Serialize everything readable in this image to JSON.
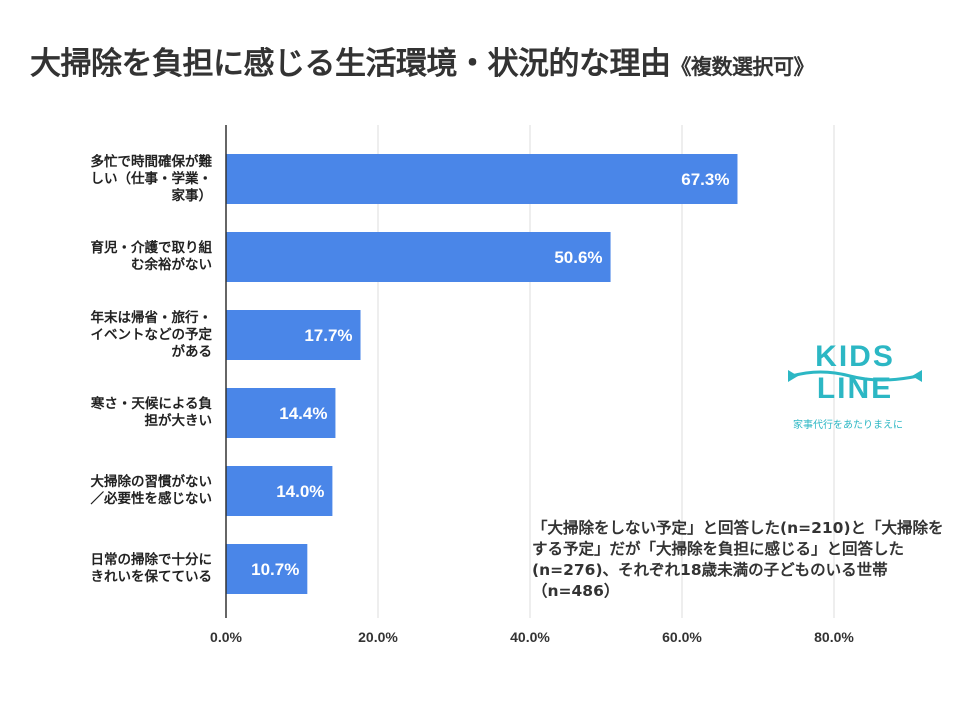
{
  "title": {
    "main": "大掃除を負担に感じる生活環境・状況的な理由",
    "sub": "《複数選択可》"
  },
  "chart_data": {
    "type": "bar",
    "orientation": "horizontal",
    "categories": [
      "多忙で時間確保が難しい（仕事・学業・家事）",
      "育児・介護で取り組む余裕がない",
      "年末は帰省・旅行・イベントなどの予定がある",
      "寒さ・天候による負担が大きい",
      "大掃除の習慣がない／必要性を感じない",
      "日常の掃除で十分にきれいを保てている"
    ],
    "category_lines": [
      [
        "多忙で時間確保が難",
        "しい（仕事・学業・",
        "家事）"
      ],
      [
        "育児・介護で取り組",
        "む余裕がない"
      ],
      [
        "年末は帰省・旅行・",
        "イベントなどの予定",
        "がある"
      ],
      [
        "寒さ・天候による負",
        "担が大きい"
      ],
      [
        "大掃除の習慣がない",
        "／必要性を感じない"
      ],
      [
        "日常の掃除で十分に",
        "きれいを保てている"
      ]
    ],
    "values": [
      67.3,
      50.6,
      17.7,
      14.4,
      14.0,
      10.7
    ],
    "value_labels": [
      "67.3%",
      "50.6%",
      "17.7%",
      "14.4%",
      "14.0%",
      "10.7%"
    ],
    "xlim": [
      0,
      80
    ],
    "xticks": [
      0,
      20,
      40,
      60,
      80
    ],
    "xtick_labels": [
      "0.0%",
      "20.0%",
      "40.0%",
      "60.0%",
      "80.0%"
    ],
    "grid": true,
    "bar_color": "#4a86e8",
    "label_color": "#ffffff"
  },
  "logo": {
    "line1": "KIDS",
    "line2": "LINE",
    "tagline": "家事代行をあたりまえに",
    "color": "#2cb7c4"
  },
  "note": "「大掃除をしない予定」と回答した(n=210)と「大掃除をする予定」だが「大掃除を負担に感じる」と回答した(n=276)、それぞれ18歳未満の子どものいる世帯（n=486）"
}
